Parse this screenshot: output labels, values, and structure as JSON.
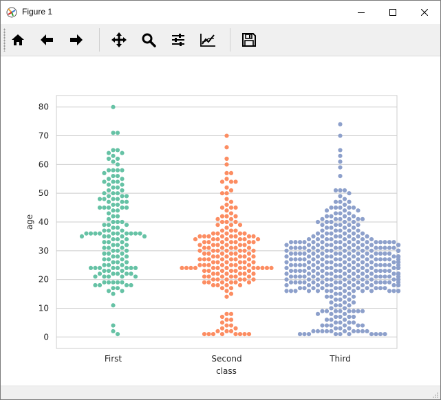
{
  "window": {
    "title": "Figure 1"
  },
  "toolbar": {
    "tools": [
      {
        "name": "home-button",
        "icon": "home-icon"
      },
      {
        "name": "back-button",
        "icon": "arrow-left-icon"
      },
      {
        "name": "forward-button",
        "icon": "arrow-right-icon"
      },
      {
        "name": "pan-button",
        "icon": "move-icon"
      },
      {
        "name": "zoom-button",
        "icon": "magnifier-icon"
      },
      {
        "name": "subplots-button",
        "icon": "sliders-icon"
      },
      {
        "name": "customize-button",
        "icon": "line-chart-icon"
      },
      {
        "name": "save-button",
        "icon": "floppy-disk-icon"
      }
    ]
  },
  "chart_data": {
    "type": "scatter",
    "subtype": "swarm",
    "xlabel": "class",
    "ylabel": "age",
    "categories": [
      "First",
      "Second",
      "Third"
    ],
    "ylim": [
      -4,
      84
    ],
    "yticks": [
      0,
      10,
      20,
      30,
      40,
      50,
      60,
      70,
      80
    ],
    "grid": true,
    "series": [
      {
        "category": "First",
        "color": "#66c2a5",
        "values": [
          80,
          71,
          71,
          65,
          65,
          64,
          64,
          63,
          62,
          62,
          61,
          60,
          58,
          58,
          58,
          58,
          57,
          56,
          56,
          55,
          55,
          54,
          54,
          54,
          53,
          53,
          52,
          52,
          51,
          51,
          50,
          50,
          50,
          49,
          49,
          49,
          48,
          48,
          48,
          48,
          47,
          47,
          47,
          46,
          46,
          45,
          45,
          45,
          45,
          45,
          44,
          44,
          43,
          42,
          42,
          41,
          40,
          40,
          40,
          39,
          39,
          39,
          38,
          38,
          37,
          37,
          37,
          36,
          36,
          36,
          36,
          36,
          36,
          36,
          36,
          36,
          36,
          35,
          35,
          35,
          35,
          35,
          34,
          34,
          34,
          33,
          33,
          33,
          32,
          32,
          32,
          31,
          31,
          31,
          30,
          30,
          30,
          29,
          29,
          29,
          28,
          28,
          28,
          27,
          27,
          27,
          26,
          26,
          26,
          25,
          25,
          25,
          24,
          24,
          24,
          24,
          24,
          24,
          24,
          24,
          23,
          23,
          23,
          22,
          22,
          22,
          22,
          22,
          21,
          21,
          21,
          21,
          21,
          19,
          19,
          19,
          19,
          19,
          18,
          18,
          18,
          18,
          17,
          17,
          16,
          16,
          15,
          11,
          4,
          2,
          1
        ]
      },
      {
        "category": "Second",
        "color": "#fc8d62",
        "values": [
          70,
          66,
          62,
          60,
          57,
          57,
          55,
          54,
          54,
          54,
          52,
          51,
          50,
          50,
          48,
          47,
          46,
          45,
          45,
          45,
          44,
          43,
          42,
          42,
          42,
          41,
          41,
          40,
          40,
          40,
          39,
          39,
          39,
          38,
          37,
          37,
          37,
          36,
          36,
          36,
          36,
          36,
          35,
          35,
          35,
          35,
          35,
          35,
          35,
          35,
          34,
          34,
          34,
          34,
          34,
          34,
          34,
          33,
          33,
          33,
          33,
          33,
          33,
          33,
          32,
          32,
          32,
          32,
          32,
          32,
          31,
          31,
          31,
          31,
          31,
          31,
          30,
          30,
          30,
          30,
          30,
          30,
          30,
          29,
          29,
          29,
          29,
          29,
          29,
          28,
          28,
          28,
          28,
          28,
          28,
          27,
          27,
          27,
          27,
          27,
          27,
          27,
          26,
          26,
          26,
          26,
          26,
          26,
          25,
          25,
          25,
          25,
          25,
          25,
          25,
          24,
          24,
          24,
          24,
          24,
          24,
          24,
          24,
          24,
          24,
          24,
          24,
          24,
          24,
          23,
          23,
          23,
          23,
          23,
          23,
          22,
          22,
          22,
          22,
          22,
          22,
          21,
          21,
          21,
          21,
          21,
          21,
          20,
          20,
          20,
          20,
          20,
          20,
          19,
          19,
          19,
          19,
          19,
          19,
          18,
          18,
          18,
          18,
          17,
          17,
          16,
          15,
          14,
          8,
          8,
          7,
          6,
          6,
          5,
          4,
          4,
          3,
          3,
          2,
          2,
          2,
          1,
          1,
          1,
          1,
          1,
          1,
          1,
          1
        ]
      },
      {
        "category": "Third",
        "color": "#8da0cb",
        "values": [
          74,
          70,
          65,
          63,
          61,
          59,
          56,
          51,
          51,
          51,
          50,
          49,
          48,
          47,
          47,
          47,
          46,
          45,
          45,
          45,
          45,
          45,
          44,
          44,
          44,
          43,
          43,
          43,
          42,
          42,
          42,
          42,
          41,
          41,
          41,
          41,
          41,
          41,
          40,
          40,
          40,
          40,
          40,
          39,
          39,
          39,
          39,
          39,
          38,
          38,
          38,
          38,
          37,
          37,
          37,
          37,
          37,
          36,
          36,
          36,
          36,
          36,
          36,
          35,
          35,
          35,
          35,
          35,
          35,
          35,
          34,
          34,
          34,
          34,
          34,
          34,
          34,
          34,
          33,
          33,
          33,
          33,
          33,
          33,
          33,
          33,
          33,
          33,
          33,
          33,
          33,
          33,
          33,
          33,
          32,
          32,
          32,
          32,
          32,
          32,
          32,
          32,
          32,
          32,
          32,
          32,
          32,
          31,
          31,
          31,
          31,
          31,
          31,
          31,
          31,
          31,
          31,
          31,
          31,
          31,
          31,
          31,
          31,
          30,
          30,
          30,
          30,
          30,
          30,
          30,
          30,
          30,
          30,
          30,
          30,
          30,
          30,
          30,
          30,
          29,
          29,
          29,
          29,
          29,
          29,
          29,
          29,
          29,
          29,
          29,
          29,
          29,
          29,
          29,
          28,
          28,
          28,
          28,
          28,
          28,
          28,
          28,
          28,
          28,
          28,
          28,
          28,
          28,
          28,
          28,
          27,
          27,
          27,
          27,
          27,
          27,
          27,
          27,
          27,
          27,
          27,
          27,
          27,
          27,
          27,
          27,
          26,
          26,
          26,
          26,
          26,
          26,
          26,
          26,
          26,
          26,
          26,
          26,
          26,
          26,
          26,
          26,
          25,
          25,
          25,
          25,
          25,
          25,
          25,
          25,
          25,
          25,
          25,
          25,
          25,
          25,
          25,
          25,
          24,
          24,
          24,
          24,
          24,
          24,
          24,
          24,
          24,
          24,
          24,
          24,
          24,
          24,
          24,
          24,
          24,
          23,
          23,
          23,
          23,
          23,
          23,
          23,
          23,
          23,
          23,
          23,
          23,
          23,
          23,
          23,
          22,
          22,
          22,
          22,
          22,
          22,
          22,
          22,
          22,
          22,
          22,
          22,
          22,
          22,
          22,
          22,
          21,
          21,
          21,
          21,
          21,
          21,
          21,
          21,
          21,
          21,
          21,
          21,
          21,
          21,
          21,
          21,
          21,
          20,
          20,
          20,
          20,
          20,
          20,
          20,
          20,
          20,
          20,
          20,
          20,
          20,
          20,
          20,
          20,
          19,
          19,
          19,
          19,
          19,
          19,
          19,
          19,
          19,
          19,
          19,
          19,
          19,
          19,
          19,
          19,
          19,
          18,
          18,
          18,
          18,
          18,
          18,
          18,
          18,
          18,
          18,
          18,
          18,
          18,
          18,
          18,
          17,
          17,
          17,
          17,
          17,
          17,
          17,
          17,
          17,
          17,
          17,
          17,
          16,
          16,
          16,
          16,
          16,
          16,
          16,
          16,
          16,
          16,
          16,
          16,
          16,
          16,
          16,
          16,
          16,
          15,
          15,
          15,
          14,
          14,
          14,
          14,
          13,
          13,
          13,
          12,
          12,
          12,
          11,
          11,
          11,
          10,
          10,
          9,
          9,
          9,
          9,
          9,
          9,
          9,
          9,
          8,
          8,
          8,
          7,
          7,
          7,
          7,
          6,
          6,
          6,
          5,
          5,
          5,
          5,
          4,
          4,
          4,
          4,
          4,
          4,
          3,
          3,
          3,
          2,
          2,
          2,
          2,
          2,
          2,
          2,
          2,
          2,
          2,
          1,
          1,
          1,
          1,
          1,
          1,
          1,
          1,
          1,
          1
        ]
      }
    ]
  }
}
